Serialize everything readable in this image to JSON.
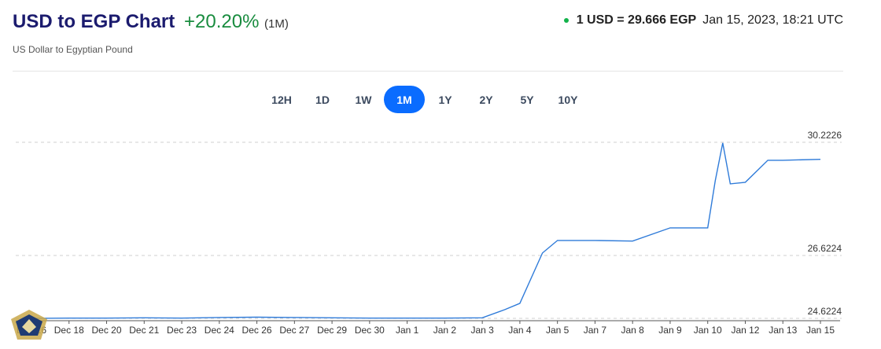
{
  "header": {
    "title": "USD to EGP Chart",
    "change": "+20.20%",
    "period": "(1M)",
    "subtitle": "US Dollar to Egyptian Pound",
    "rate": "1 USD = 29.666 EGP",
    "timestamp": "Jan 15, 2023, 18:21 UTC"
  },
  "ranges": [
    {
      "label": "12H",
      "active": false
    },
    {
      "label": "1D",
      "active": false
    },
    {
      "label": "1W",
      "active": false
    },
    {
      "label": "1M",
      "active": true
    },
    {
      "label": "1Y",
      "active": false
    },
    {
      "label": "2Y",
      "active": false
    },
    {
      "label": "5Y",
      "active": false
    },
    {
      "label": "10Y",
      "active": false
    }
  ],
  "colors": {
    "title": "#1b1b6e",
    "positive": "#198c3f",
    "accent": "#0a6cff",
    "line": "#2f7bd9",
    "live_dot": "#12b24a"
  },
  "chart_data": {
    "type": "line",
    "grid": "horizontal dashed",
    "y_ticks": [
      "30.2226",
      "26.6224",
      "24.6224"
    ],
    "ylim": [
      24.6224,
      30.2226
    ],
    "x_ticks": [
      "Dec 16",
      "Dec 18",
      "Dec 20",
      "Dec 21",
      "Dec 23",
      "Dec 24",
      "Dec 26",
      "Dec 27",
      "Dec 29",
      "Dec 30",
      "Jan 1",
      "Jan 2",
      "Jan 3",
      "Jan 4",
      "Jan 5",
      "Jan 7",
      "Jan 8",
      "Jan 9",
      "Jan 10",
      "Jan 12",
      "Jan 13",
      "Jan 15"
    ],
    "series": [
      {
        "points": [
          [
            "Dec 16",
            24.62
          ],
          [
            "Dec 18",
            24.63
          ],
          [
            "Dec 20",
            24.63
          ],
          [
            "Dec 21",
            24.64
          ],
          [
            "Dec 23",
            24.63
          ],
          [
            "Dec 24",
            24.65
          ],
          [
            "Dec 26",
            24.66
          ],
          [
            "Dec 27",
            24.65
          ],
          [
            "Dec 29",
            24.64
          ],
          [
            "Dec 30",
            24.63
          ],
          [
            "Jan 1",
            24.63
          ],
          [
            "Jan 2",
            24.63
          ],
          [
            "Jan 3",
            24.64
          ],
          [
            "Jan 3",
            24.9
          ],
          [
            "Jan 4",
            25.1
          ],
          [
            "Jan 4",
            26.7
          ],
          [
            "Jan 5",
            27.1
          ],
          [
            "Jan 7",
            27.1
          ],
          [
            "Jan 8",
            27.08
          ],
          [
            "Jan 9",
            27.5
          ],
          [
            "Jan 10",
            27.5
          ],
          [
            "Jan 10",
            29.0
          ],
          [
            "Jan 10",
            30.2
          ],
          [
            "Jan 10",
            28.9
          ],
          [
            "Jan 12",
            28.95
          ],
          [
            "Jan 12",
            29.65
          ],
          [
            "Jan 13",
            29.65
          ],
          [
            "Jan 15",
            29.68
          ]
        ]
      }
    ]
  }
}
